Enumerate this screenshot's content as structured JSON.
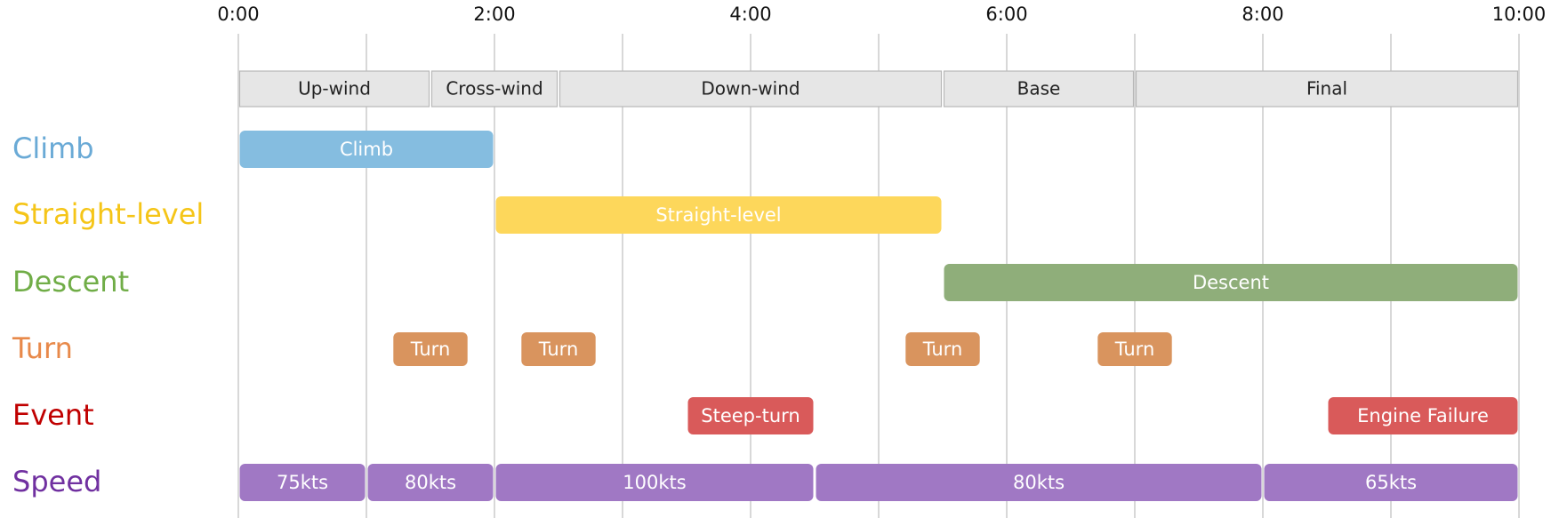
{
  "timeline": {
    "ticks": [
      "0:00",
      "2:00",
      "4:00",
      "6:00",
      "8:00",
      "10:00"
    ],
    "tick_minutes": [
      0,
      2,
      4,
      6,
      8,
      10
    ],
    "grid_minutes": [
      0,
      1,
      2,
      3,
      4,
      5,
      6,
      7,
      8,
      9,
      10
    ],
    "range_minutes": [
      0,
      10
    ]
  },
  "phases": [
    {
      "label": "Up-wind",
      "start": 0,
      "end": 1.5
    },
    {
      "label": "Cross-wind",
      "start": 1.5,
      "end": 2.5
    },
    {
      "label": "Down-wind",
      "start": 2.5,
      "end": 5.5
    },
    {
      "label": "Base",
      "start": 5.5,
      "end": 7
    },
    {
      "label": "Final",
      "start": 7,
      "end": 10
    }
  ],
  "rows": [
    {
      "label": "Climb",
      "color": "#6aaad6",
      "bar_color": "#85bde0",
      "items": [
        {
          "label": "Climb",
          "start": 0,
          "end": 2
        }
      ]
    },
    {
      "label": "Straight-level",
      "color": "#f5c518",
      "bar_color": "#fdd75b",
      "items": [
        {
          "label": "Straight-level",
          "start": 2,
          "end": 5.5
        }
      ]
    },
    {
      "label": "Descent",
      "color": "#70ad47",
      "bar_color": "#8fae7a",
      "items": [
        {
          "label": "Descent",
          "start": 5.5,
          "end": 10
        }
      ]
    },
    {
      "label": "Turn",
      "color": "#e8894a",
      "bar_color": "#d9945e",
      "items": [
        {
          "label": "Turn",
          "start": 1.2,
          "end": 1.8
        },
        {
          "label": "Turn",
          "start": 2.2,
          "end": 2.8
        },
        {
          "label": "Turn",
          "start": 5.2,
          "end": 5.8
        },
        {
          "label": "Turn",
          "start": 6.7,
          "end": 7.3
        }
      ]
    },
    {
      "label": "Event",
      "color": "#c00000",
      "bar_color": "#d95a5a",
      "items": [
        {
          "label": "Steep-turn",
          "start": 3.5,
          "end": 4.5
        },
        {
          "label": "Engine Failure",
          "start": 8.5,
          "end": 10
        }
      ]
    },
    {
      "label": "Speed",
      "color": "#7030a0",
      "bar_color": "#a078c4",
      "items": [
        {
          "label": "75kts",
          "start": 0,
          "end": 1
        },
        {
          "label": "80kts",
          "start": 1,
          "end": 2
        },
        {
          "label": "100kts",
          "start": 2,
          "end": 4.5
        },
        {
          "label": "80kts",
          "start": 4.5,
          "end": 8
        },
        {
          "label": "65kts",
          "start": 8,
          "end": 10
        }
      ]
    }
  ]
}
